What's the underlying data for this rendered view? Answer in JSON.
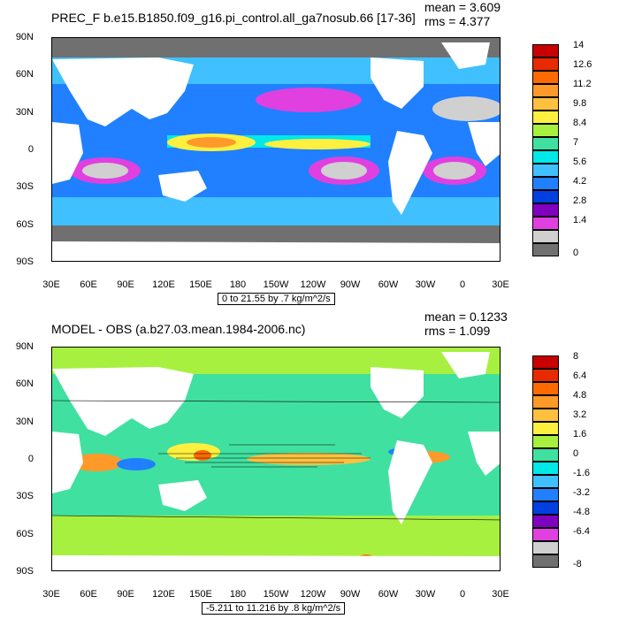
{
  "panel_top": {
    "title": "PREC_F b.e15.B1850.f09_g16.pi_control.all_ga7nosub.66 [17-36]",
    "mean": "mean = 3.609",
    "rms": "rms = 4.377",
    "range": "0 to 21.55 by .7 kg/m^2/s",
    "legend_levels": [
      "14",
      "12.6",
      "11.2",
      "9.8",
      "8.4",
      "7",
      "5.6",
      "4.2",
      "2.8",
      "1.4",
      "0"
    ],
    "legend_colors": [
      "#c80000",
      "#e82a00",
      "#ff6a00",
      "#ff9a2a",
      "#ffc040",
      "#fff040",
      "#a8f040",
      "#40e0a0",
      "#00e8e8",
      "#40c0ff",
      "#2080ff",
      "#0040e0",
      "#8000c0",
      "#e040e0",
      "#d0d0d0",
      "#707070"
    ]
  },
  "panel_bottom": {
    "title": "MODEL - OBS (a.b27.03.mean.1984-2006.nc)",
    "mean": "mean = 0.1233",
    "rms": "rms = 1.099",
    "range": "-5.211 to 11.216 by .8 kg/m^2/s",
    "legend_levels": [
      "8",
      "6.4",
      "4.8",
      "3.2",
      "1.6",
      "0",
      "-1.6",
      "-3.2",
      "-4.8",
      "-6.4",
      "-8"
    ],
    "legend_colors": [
      "#c80000",
      "#e82a00",
      "#ff6a00",
      "#ff9a2a",
      "#ffc040",
      "#fff040",
      "#a8f040",
      "#40e0a0",
      "#00e8e8",
      "#40c0ff",
      "#2080ff",
      "#0040e0",
      "#8000c0",
      "#e040e0",
      "#d0d0d0",
      "#707070"
    ]
  },
  "axes": {
    "lat_labels": [
      "90N",
      "60N",
      "30N",
      "0",
      "30S",
      "60S",
      "90S"
    ],
    "lon_labels": [
      "30E",
      "60E",
      "90E",
      "120E",
      "150E",
      "180",
      "150W",
      "120W",
      "90W",
      "60W",
      "30W",
      "0",
      "30E"
    ]
  },
  "colors": {
    "ocean_mid": "#40c0ff",
    "land": "#ffffff",
    "ice": "#707070"
  }
}
